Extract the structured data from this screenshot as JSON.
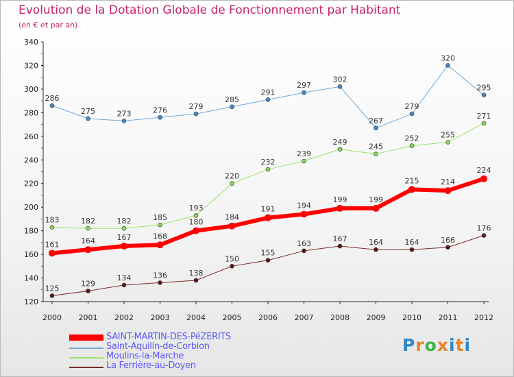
{
  "header": {
    "title": "Evolution de la Dotation Globale de Fonctionnement par Habitant",
    "subtitle": "(en € et par an)"
  },
  "colors": {
    "title": "#c8216b",
    "series": [
      "#ff0000",
      "#6fa8dc",
      "#99e36b",
      "#7a2a2a"
    ],
    "markers": [
      "#ff0000",
      "#4a8ac9",
      "#8bd65a",
      "#5a1a1a"
    ]
  },
  "logo": {
    "letters": [
      "P",
      "r",
      "o",
      "x",
      "i",
      "t",
      "i"
    ],
    "colors": [
      "#2f86c9",
      "#e6862a",
      "#3bb54a",
      "#e6862a",
      "#2f86c9",
      "#e6862a",
      "#2f86c9"
    ]
  },
  "chart_data": {
    "type": "line",
    "title": "Evolution de la Dotation Globale de Fonctionnement par Habitant",
    "subtitle": "(en € et par an)",
    "x": [
      "2000",
      "2001",
      "2002",
      "2003",
      "2004",
      "2005",
      "2006",
      "2007",
      "2008",
      "2009",
      "2010",
      "2011",
      "2012"
    ],
    "ylim": [
      120,
      340
    ],
    "yticks": [
      120,
      140,
      160,
      180,
      200,
      220,
      240,
      260,
      280,
      300,
      320,
      340
    ],
    "grid": false,
    "legend_position": "bottom-left",
    "series": [
      {
        "name": "SAINT-MARTIN-DES-PéZERITS",
        "values": [
          161,
          164,
          167,
          168,
          180,
          184,
          191,
          194,
          199,
          199,
          215,
          214,
          224
        ]
      },
      {
        "name": "Saint-Aquilin-de-Corbion",
        "values": [
          286,
          275,
          273,
          276,
          279,
          285,
          291,
          297,
          302,
          267,
          279,
          320,
          295
        ]
      },
      {
        "name": "Moulins-la-Marche",
        "values": [
          183,
          182,
          182,
          185,
          193,
          220,
          232,
          239,
          249,
          245,
          252,
          255,
          271
        ]
      },
      {
        "name": "La Ferrière-au-Doyen",
        "values": [
          125,
          129,
          134,
          136,
          138,
          150,
          155,
          163,
          167,
          164,
          164,
          166,
          176
        ]
      }
    ]
  }
}
